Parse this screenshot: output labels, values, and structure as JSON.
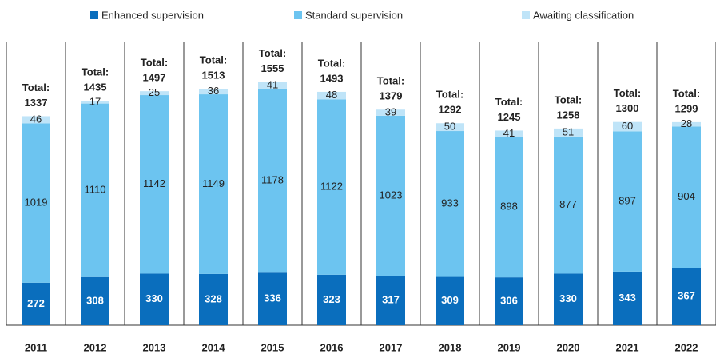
{
  "chart_data": {
    "type": "stacked-bar",
    "categories": [
      "2011",
      "2012",
      "2013",
      "2014",
      "2015",
      "2016",
      "2017",
      "2018",
      "2019",
      "2020",
      "2021",
      "2022"
    ],
    "series": [
      {
        "name": "Enhanced supervision",
        "color": "#0a6ebd",
        "values": [
          272,
          308,
          330,
          328,
          336,
          323,
          317,
          309,
          306,
          330,
          343,
          367
        ]
      },
      {
        "name": "Standard supervision",
        "color": "#6cc4f0",
        "values": [
          1019,
          1110,
          1142,
          1149,
          1178,
          1122,
          1023,
          933,
          898,
          877,
          897,
          904
        ]
      },
      {
        "name": "Awaiting classification",
        "color": "#bfe4f8",
        "values": [
          46,
          17,
          25,
          36,
          41,
          48,
          39,
          50,
          41,
          51,
          60,
          28
        ]
      }
    ],
    "total_label": "Total:",
    "totals": [
      1337,
      1435,
      1497,
      1513,
      1555,
      1493,
      1379,
      1292,
      1245,
      1258,
      1300,
      1299
    ],
    "ylim": [
      0,
      1600
    ]
  }
}
